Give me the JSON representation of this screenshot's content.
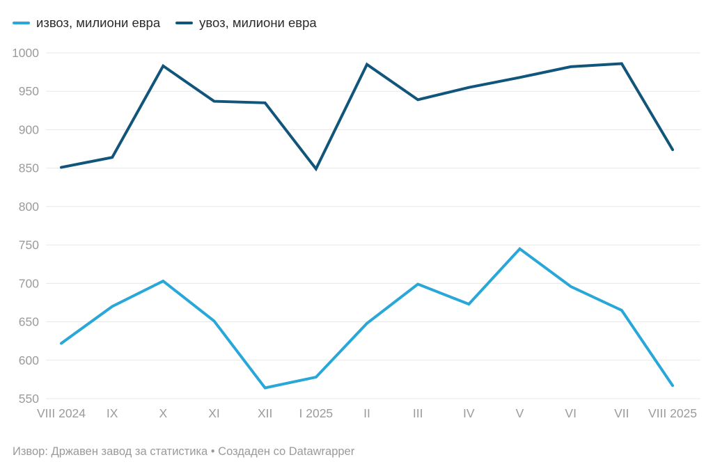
{
  "legend": {
    "items": [
      {
        "label": "извоз, милиони евра",
        "color": "#29a7d8"
      },
      {
        "label": "увоз, милиони евра",
        "color": "#11557a"
      }
    ]
  },
  "chart_data": {
    "type": "line",
    "x": [
      "VIII 2024",
      "IX",
      "X",
      "XI",
      "XII",
      "I 2025",
      "II",
      "III",
      "IV",
      "V",
      "VI",
      "VII",
      "VIII 2025"
    ],
    "series": [
      {
        "name": "извоз, милиони евра",
        "color": "#29a7d8",
        "values": [
          622,
          670,
          703,
          651,
          564,
          578,
          648,
          699,
          673,
          745,
          696,
          665,
          567
        ]
      },
      {
        "name": "увоз, милиони евра",
        "color": "#11557a",
        "values": [
          851,
          864,
          983,
          937,
          935,
          849,
          985,
          939,
          955,
          968,
          982,
          986,
          874
        ]
      }
    ],
    "ylim": [
      550,
      1000
    ],
    "yticks": [
      550,
      600,
      650,
      700,
      750,
      800,
      850,
      900,
      950,
      1000
    ],
    "grid": true,
    "legend_position": "top-left",
    "title": "",
    "xlabel": "",
    "ylabel": ""
  },
  "footer": {
    "text": "Извор: Државен завод за статистика • Создаден со Datawrapper"
  },
  "colors": {
    "grid": "#e7e7e7",
    "axis_text": "#9b9b9b",
    "legend_text": "#2b2b2b",
    "footer_text": "#9a9a9a",
    "background": "#ffffff"
  }
}
